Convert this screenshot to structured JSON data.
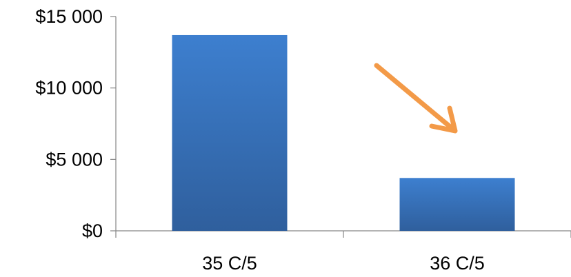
{
  "chart_data": {
    "type": "bar",
    "title": "",
    "xlabel": "",
    "ylabel": "",
    "categories": [
      "35 C/5",
      "36 C/5"
    ],
    "series": [
      {
        "values": [
          13700,
          3700
        ]
      }
    ],
    "ylim": [
      0,
      15000
    ],
    "y_ticks": [
      {
        "value": 0,
        "label": "$0"
      },
      {
        "value": 5000,
        "label": "$5 000"
      },
      {
        "value": 10000,
        "label": "$10 000"
      },
      {
        "value": 15000,
        "label": "$15 000"
      }
    ],
    "grid": false,
    "legend": "none",
    "bar_color": "#3a6fb6",
    "bar_gradient": [
      "#3d7fcf",
      "#2f5f9d"
    ],
    "annotations": [
      {
        "type": "arrow",
        "direction": "down-right",
        "pointing_at": "36 C/5",
        "color": "#f39a48"
      }
    ]
  }
}
